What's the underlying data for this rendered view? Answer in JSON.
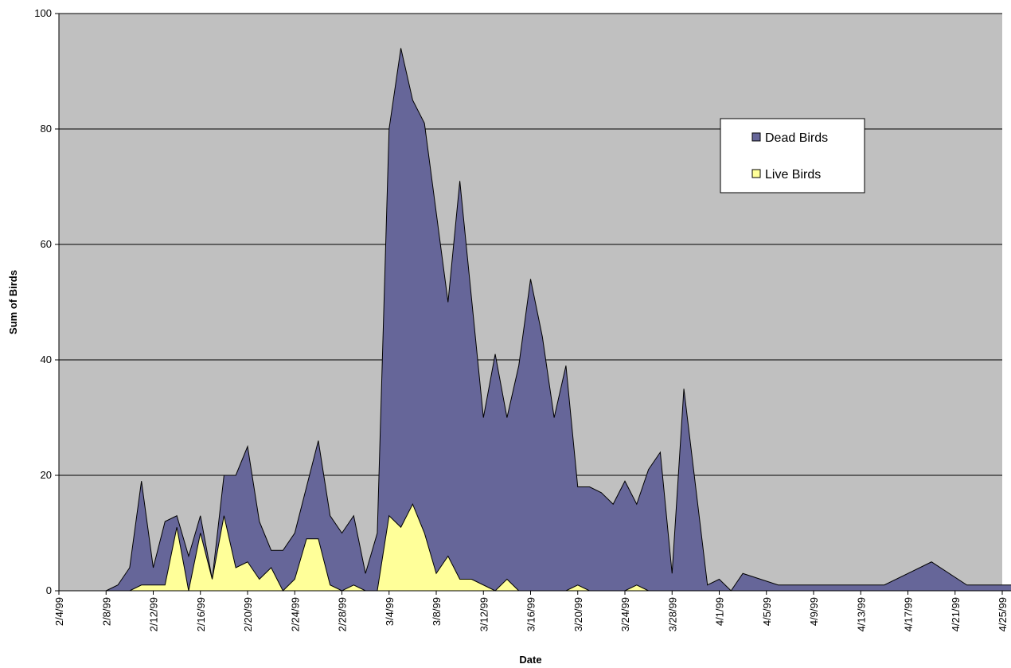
{
  "colors": {
    "plot_background": "#c0c0c0",
    "dead_fill": "#666699",
    "live_fill": "#ffff99",
    "outline": "#000000",
    "gridline": "#000000"
  },
  "chart_data": {
    "type": "area",
    "xlabel": "Date",
    "ylabel": "Sum of Birds",
    "ylim": [
      0,
      100
    ],
    "yticks": [
      0,
      20,
      40,
      60,
      80,
      100
    ],
    "xlim": [
      "1999-02-04",
      "1999-04-25"
    ],
    "xtick_labels": [
      "2/4/99",
      "2/8/99",
      "2/12/99",
      "2/16/99",
      "2/20/99",
      "2/24/99",
      "2/28/99",
      "3/4/99",
      "3/8/99",
      "3/12/99",
      "3/16/99",
      "3/20/99",
      "3/24/99",
      "3/28/99",
      "4/1/99",
      "4/5/99",
      "4/9/99",
      "4/13/99",
      "4/17/99",
      "4/21/99",
      "4/25/99"
    ],
    "grid": "horizontal",
    "legend_position": "upper-right",
    "stacked_note": "Dead Birds values are the top of the filled area (total); Live Birds drawn in front.",
    "series": [
      {
        "name": "Dead Birds",
        "color": "#666699",
        "points": [
          [
            "1999-02-08",
            0
          ],
          [
            "1999-02-09",
            1
          ],
          [
            "1999-02-10",
            4
          ],
          [
            "1999-02-11",
            19
          ],
          [
            "1999-02-12",
            4
          ],
          [
            "1999-02-13",
            12
          ],
          [
            "1999-02-14",
            13
          ],
          [
            "1999-02-15",
            6
          ],
          [
            "1999-02-16",
            13
          ],
          [
            "1999-02-17",
            2
          ],
          [
            "1999-02-18",
            20
          ],
          [
            "1999-02-19",
            20
          ],
          [
            "1999-02-20",
            25
          ],
          [
            "1999-02-21",
            12
          ],
          [
            "1999-02-22",
            7
          ],
          [
            "1999-02-23",
            7
          ],
          [
            "1999-02-24",
            10
          ],
          [
            "1999-02-26",
            26
          ],
          [
            "1999-02-27",
            13
          ],
          [
            "1999-02-28",
            10
          ],
          [
            "1999-03-01",
            13
          ],
          [
            "1999-03-02",
            3
          ],
          [
            "1999-03-03",
            10
          ],
          [
            "1999-03-04",
            80
          ],
          [
            "1999-03-05",
            94
          ],
          [
            "1999-03-06",
            85
          ],
          [
            "1999-03-07",
            81
          ],
          [
            "1999-03-09",
            50
          ],
          [
            "1999-03-10",
            71
          ],
          [
            "1999-03-12",
            30
          ],
          [
            "1999-03-13",
            41
          ],
          [
            "1999-03-14",
            30
          ],
          [
            "1999-03-15",
            39
          ],
          [
            "1999-03-16",
            54
          ],
          [
            "1999-03-17",
            44
          ],
          [
            "1999-03-18",
            30
          ],
          [
            "1999-03-19",
            39
          ],
          [
            "1999-03-20",
            18
          ],
          [
            "1999-03-21",
            18
          ],
          [
            "1999-03-22",
            17
          ],
          [
            "1999-03-23",
            15
          ],
          [
            "1999-03-24",
            19
          ],
          [
            "1999-03-25",
            15
          ],
          [
            "1999-03-26",
            21
          ],
          [
            "1999-03-27",
            24
          ],
          [
            "1999-03-28",
            3
          ],
          [
            "1999-03-29",
            35
          ],
          [
            "1999-03-31",
            1
          ],
          [
            "1999-04-01",
            2
          ],
          [
            "1999-04-02",
            0
          ],
          [
            "1999-04-03",
            3
          ],
          [
            "1999-04-06",
            1
          ],
          [
            "1999-04-15",
            1
          ],
          [
            "1999-04-19",
            5
          ],
          [
            "1999-04-22",
            1
          ],
          [
            "1999-04-26",
            1
          ]
        ]
      },
      {
        "name": "Live Birds",
        "color": "#ffff99",
        "points": [
          [
            "1999-02-10",
            0
          ],
          [
            "1999-02-11",
            1
          ],
          [
            "1999-02-13",
            1
          ],
          [
            "1999-02-14",
            11
          ],
          [
            "1999-02-15",
            0
          ],
          [
            "1999-02-16",
            10
          ],
          [
            "1999-02-17",
            2
          ],
          [
            "1999-02-18",
            13
          ],
          [
            "1999-02-19",
            4
          ],
          [
            "1999-02-20",
            5
          ],
          [
            "1999-02-21",
            2
          ],
          [
            "1999-02-22",
            4
          ],
          [
            "1999-02-23",
            0
          ],
          [
            "1999-02-24",
            2
          ],
          [
            "1999-02-25",
            9
          ],
          [
            "1999-02-26",
            9
          ],
          [
            "1999-02-27",
            1
          ],
          [
            "1999-02-28",
            0
          ],
          [
            "1999-03-01",
            1
          ],
          [
            "1999-03-02",
            0
          ],
          [
            "1999-03-03",
            0
          ],
          [
            "1999-03-04",
            13
          ],
          [
            "1999-03-05",
            11
          ],
          [
            "1999-03-06",
            15
          ],
          [
            "1999-03-07",
            10
          ],
          [
            "1999-03-08",
            3
          ],
          [
            "1999-03-09",
            6
          ],
          [
            "1999-03-10",
            2
          ],
          [
            "1999-03-11",
            2
          ],
          [
            "1999-03-12",
            1
          ],
          [
            "1999-03-13",
            0
          ],
          [
            "1999-03-14",
            2
          ],
          [
            "1999-03-15",
            0
          ],
          [
            "1999-03-19",
            0
          ],
          [
            "1999-03-20",
            1
          ],
          [
            "1999-03-21",
            0
          ],
          [
            "1999-03-24",
            0
          ],
          [
            "1999-03-25",
            1
          ],
          [
            "1999-03-26",
            0
          ]
        ]
      }
    ]
  }
}
